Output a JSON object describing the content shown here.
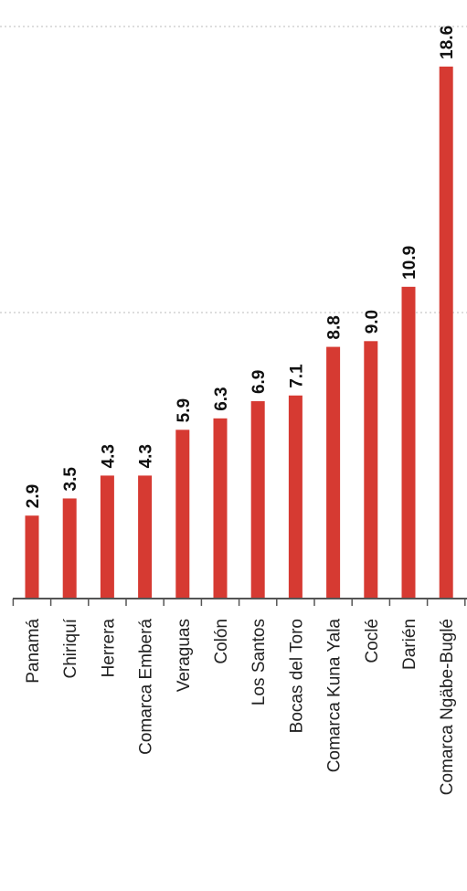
{
  "chart_data": {
    "type": "bar",
    "orientation": "vertical",
    "categories": [
      "Panamá",
      "Chiriquí",
      "Herrera",
      "Comarca Emberá",
      "Veraguas",
      "Colón",
      "Los Santos",
      "Bocas del Toro",
      "Comarca Kuna Yala",
      "Coclé",
      "Darién",
      "Comarca Ngäbe-Buglé"
    ],
    "values": [
      2.9,
      3.5,
      4.3,
      4.3,
      5.9,
      6.3,
      6.9,
      7.1,
      8.8,
      9.0,
      10.9,
      18.6
    ],
    "value_labels": [
      "2.9",
      "3.5",
      "4.3",
      "4.3",
      "5.9",
      "6.3",
      "6.9",
      "7.1",
      "8.8",
      "9.0",
      "10.9",
      "18.6"
    ],
    "ylim": [
      0,
      20
    ],
    "grid": true,
    "legend": "none",
    "bar_color": "#d63a32",
    "gridline_color": "#bbbbbb",
    "axis_color": "#555555",
    "title": "",
    "xlabel": "",
    "ylabel": ""
  }
}
